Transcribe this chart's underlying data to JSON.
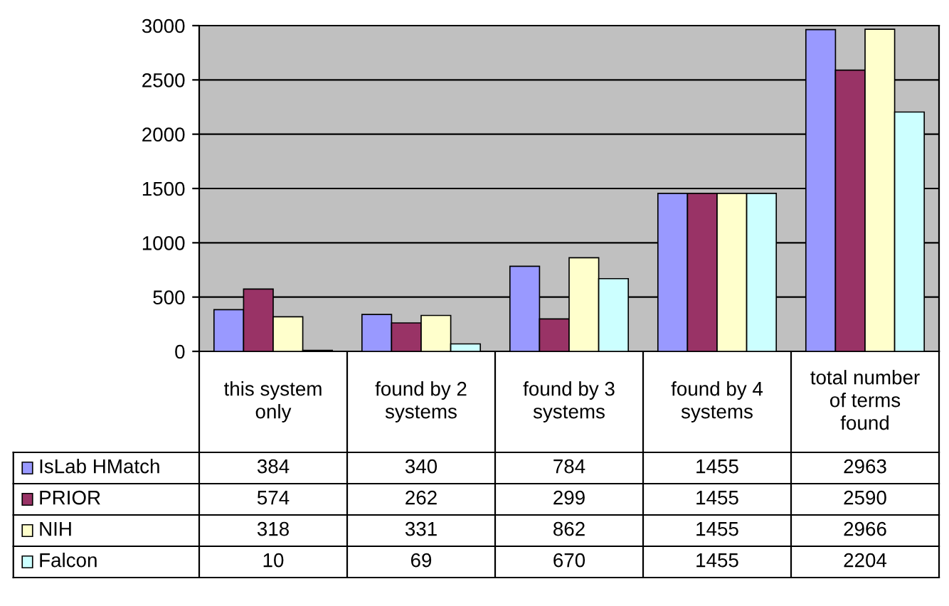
{
  "chart_data": {
    "type": "bar",
    "categories": [
      "this system only",
      "found by 2 systems",
      "found by 3 systems",
      "found by 4 systems",
      "total number of terms found"
    ],
    "series": [
      {
        "name": "IsLab HMatch",
        "color": "#9999ff",
        "values": [
          384,
          340,
          784,
          1455,
          2963
        ]
      },
      {
        "name": "PRIOR",
        "color": "#993366",
        "values": [
          574,
          262,
          299,
          1455,
          2590
        ]
      },
      {
        "name": "NIH",
        "color": "#ffffcc",
        "values": [
          318,
          331,
          862,
          1455,
          2966
        ]
      },
      {
        "name": "Falcon",
        "color": "#ccffff",
        "values": [
          10,
          69,
          670,
          1455,
          2204
        ]
      }
    ],
    "ylim": [
      0,
      3000
    ],
    "yticks": [
      0,
      500,
      1000,
      1500,
      2000,
      2500,
      3000
    ],
    "grid": "y",
    "legend": "bottom left",
    "data_labels": true
  }
}
